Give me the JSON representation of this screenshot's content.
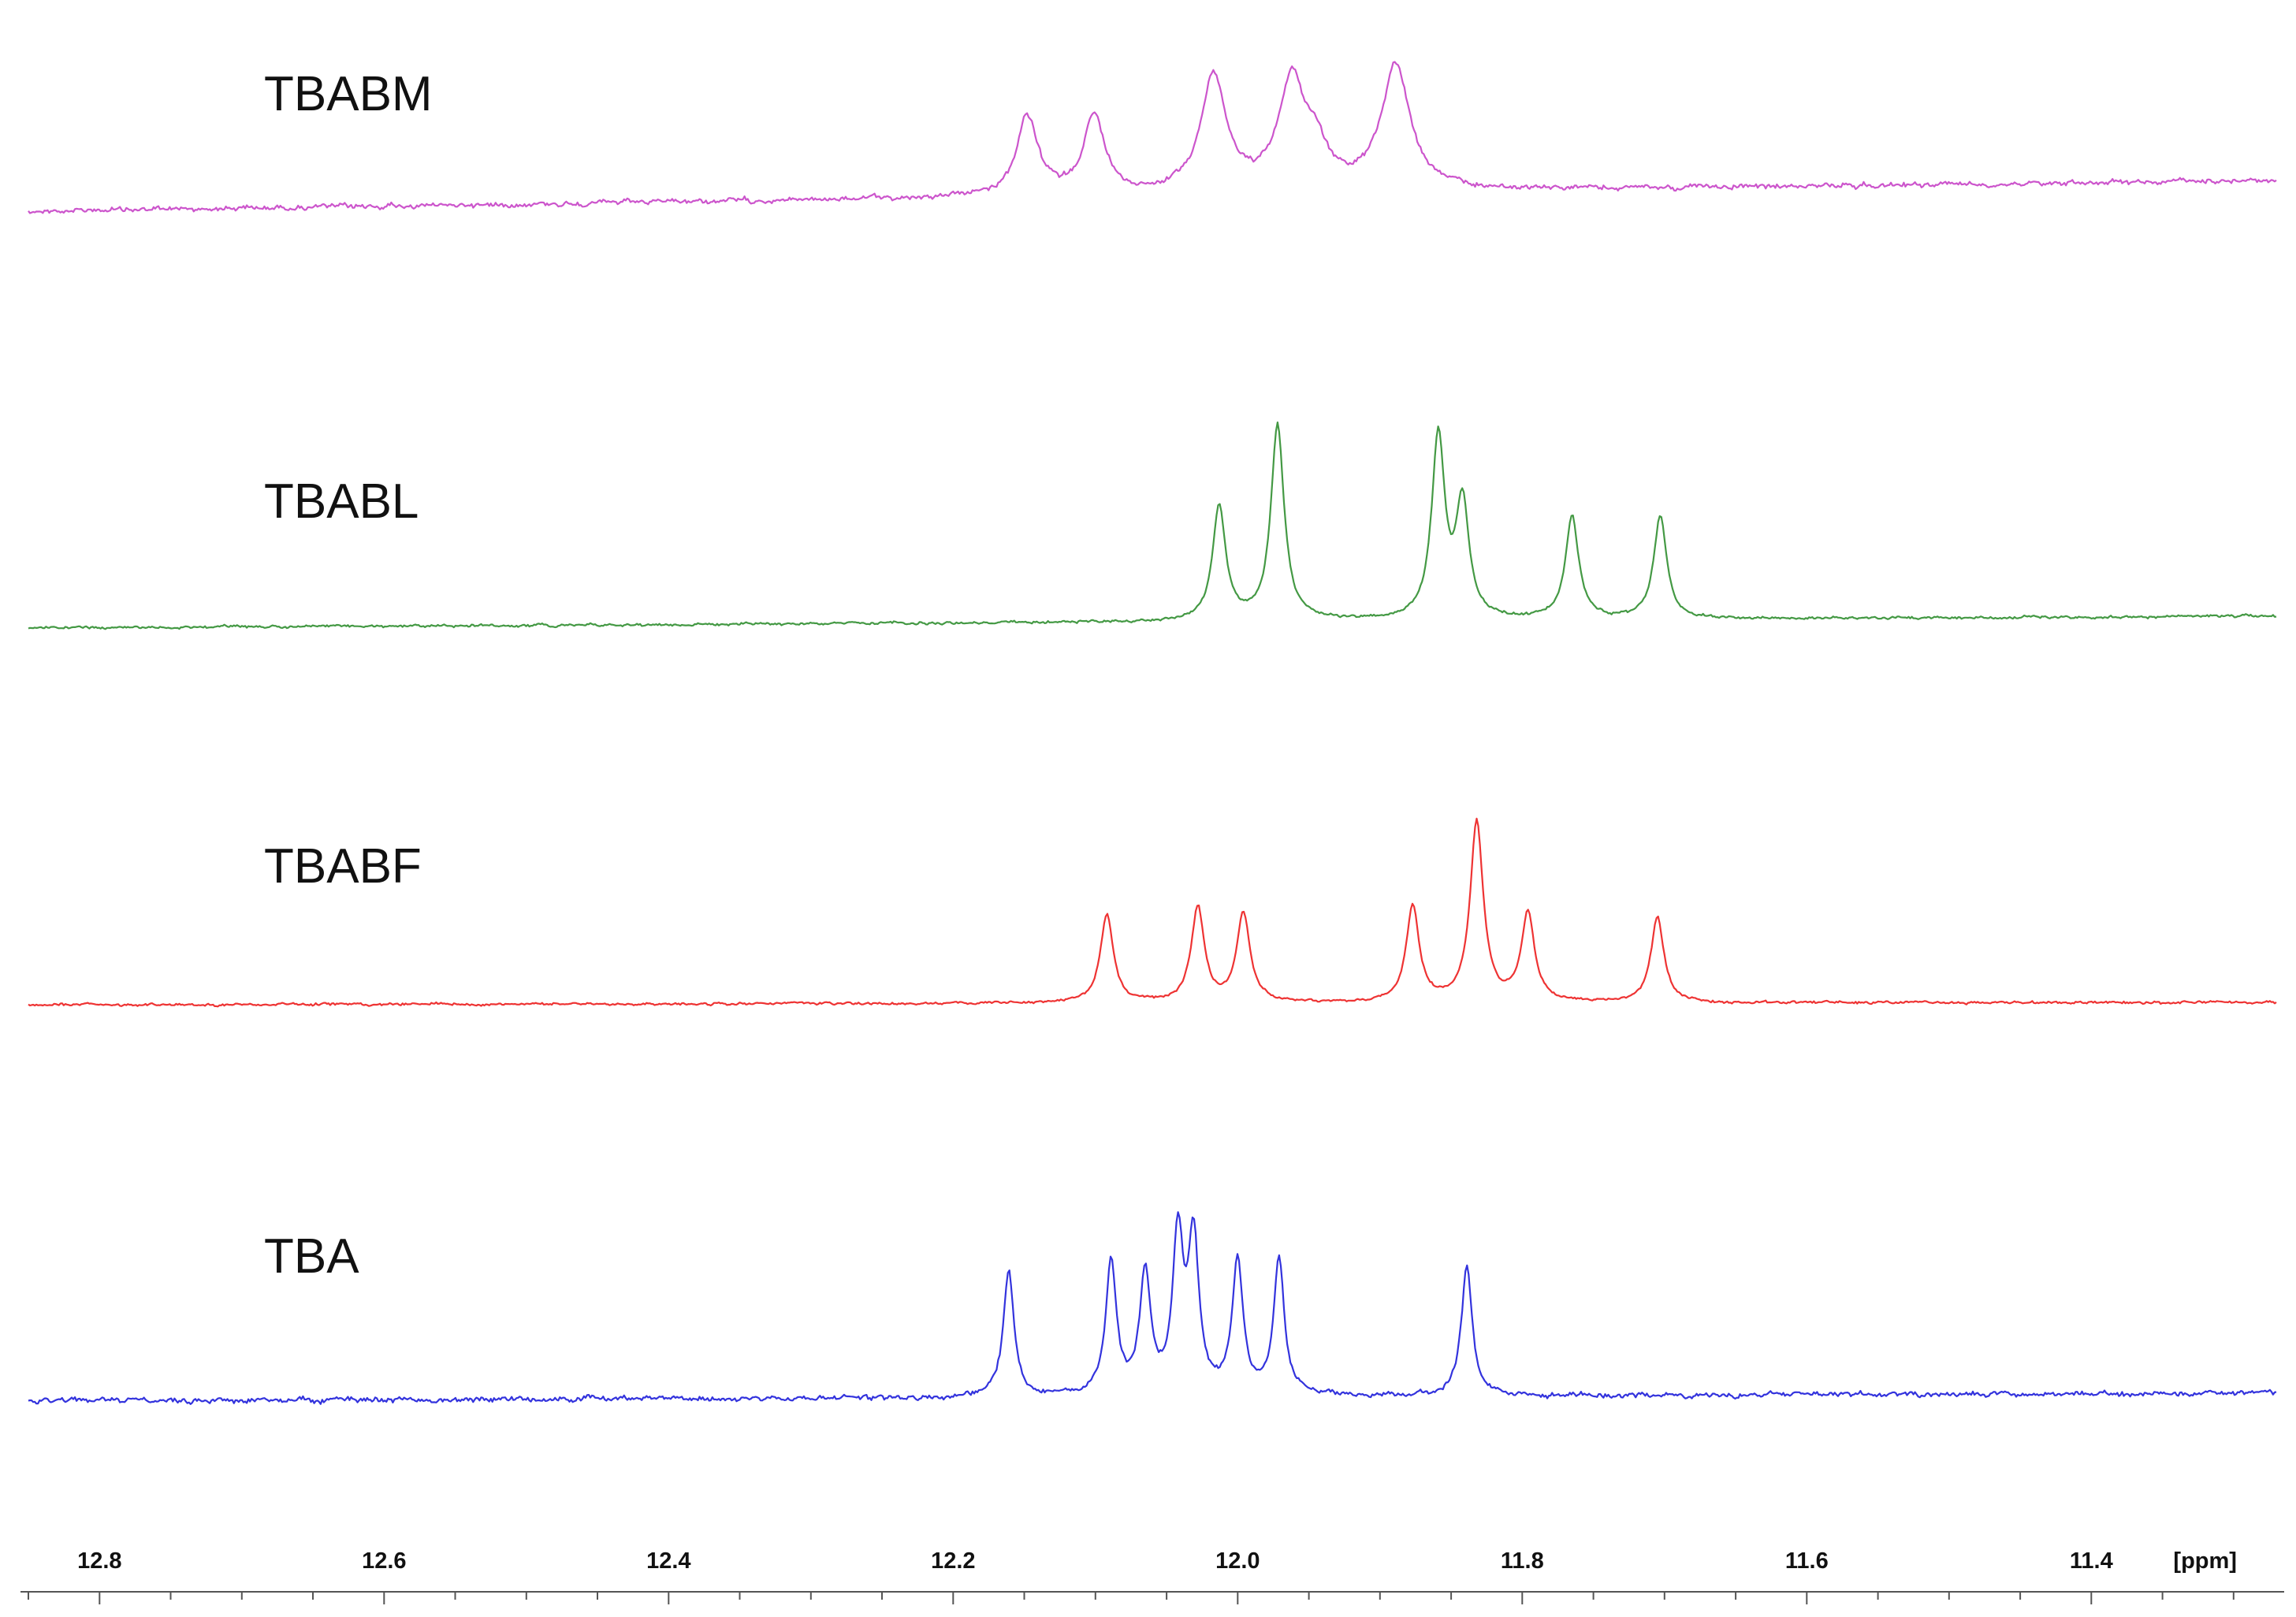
{
  "chart_data": {
    "type": "line",
    "title": "",
    "xlabel": "",
    "ylabel": "",
    "x_unit": "[ppm]",
    "x_range": [
      12.85,
      11.27
    ],
    "x_reversed": true,
    "x_ticks": [
      12.8,
      12.6,
      12.4,
      12.2,
      12.0,
      11.8,
      11.6,
      11.4
    ],
    "x_tick_labels": [
      "12.8",
      "12.6",
      "12.4",
      "12.2",
      "12.0",
      "11.8",
      "11.6",
      "11.4"
    ],
    "grid": false,
    "legend": "none",
    "series": [
      {
        "name": "TBABM",
        "color": "#cc55cc",
        "peaks": [
          {
            "ppm": 12.148,
            "height": 0.42,
            "width": 0.009
          },
          {
            "ppm": 12.101,
            "height": 0.42,
            "width": 0.009
          },
          {
            "ppm": 12.017,
            "height": 0.62,
            "width": 0.011
          },
          {
            "ppm": 11.962,
            "height": 0.58,
            "width": 0.011
          },
          {
            "ppm": 11.945,
            "height": 0.2,
            "width": 0.01
          },
          {
            "ppm": 11.889,
            "height": 0.68,
            "width": 0.012
          }
        ]
      },
      {
        "name": "TBABL",
        "color": "#449944",
        "peaks": [
          {
            "ppm": 12.013,
            "height": 0.5,
            "width": 0.0055
          },
          {
            "ppm": 11.972,
            "height": 0.86,
            "width": 0.0055
          },
          {
            "ppm": 11.859,
            "height": 0.8,
            "width": 0.0055
          },
          {
            "ppm": 11.842,
            "height": 0.5,
            "width": 0.0055
          },
          {
            "ppm": 11.765,
            "height": 0.45,
            "width": 0.0055
          },
          {
            "ppm": 11.703,
            "height": 0.45,
            "width": 0.0055
          }
        ]
      },
      {
        "name": "TBABF",
        "color": "#ee3333",
        "peaks": [
          {
            "ppm": 12.092,
            "height": 0.42,
            "width": 0.0055
          },
          {
            "ppm": 12.028,
            "height": 0.45,
            "width": 0.0055
          },
          {
            "ppm": 11.996,
            "height": 0.42,
            "width": 0.0055
          },
          {
            "ppm": 11.877,
            "height": 0.45,
            "width": 0.0055
          },
          {
            "ppm": 11.832,
            "height": 0.85,
            "width": 0.0055
          },
          {
            "ppm": 11.796,
            "height": 0.42,
            "width": 0.0055
          },
          {
            "ppm": 11.705,
            "height": 0.4,
            "width": 0.0055
          }
        ]
      },
      {
        "name": "TBA",
        "color": "#3333dd",
        "peaks": [
          {
            "ppm": 12.161,
            "height": 0.72,
            "width": 0.0045
          },
          {
            "ppm": 12.089,
            "height": 0.78,
            "width": 0.0045
          },
          {
            "ppm": 12.065,
            "height": 0.7,
            "width": 0.0045
          },
          {
            "ppm": 12.042,
            "height": 0.9,
            "width": 0.0045
          },
          {
            "ppm": 12.031,
            "height": 0.88,
            "width": 0.0045
          },
          {
            "ppm": 12.0,
            "height": 0.76,
            "width": 0.0045
          },
          {
            "ppm": 11.971,
            "height": 0.77,
            "width": 0.0045
          },
          {
            "ppm": 11.839,
            "height": 0.74,
            "width": 0.0045
          }
        ]
      }
    ]
  }
}
